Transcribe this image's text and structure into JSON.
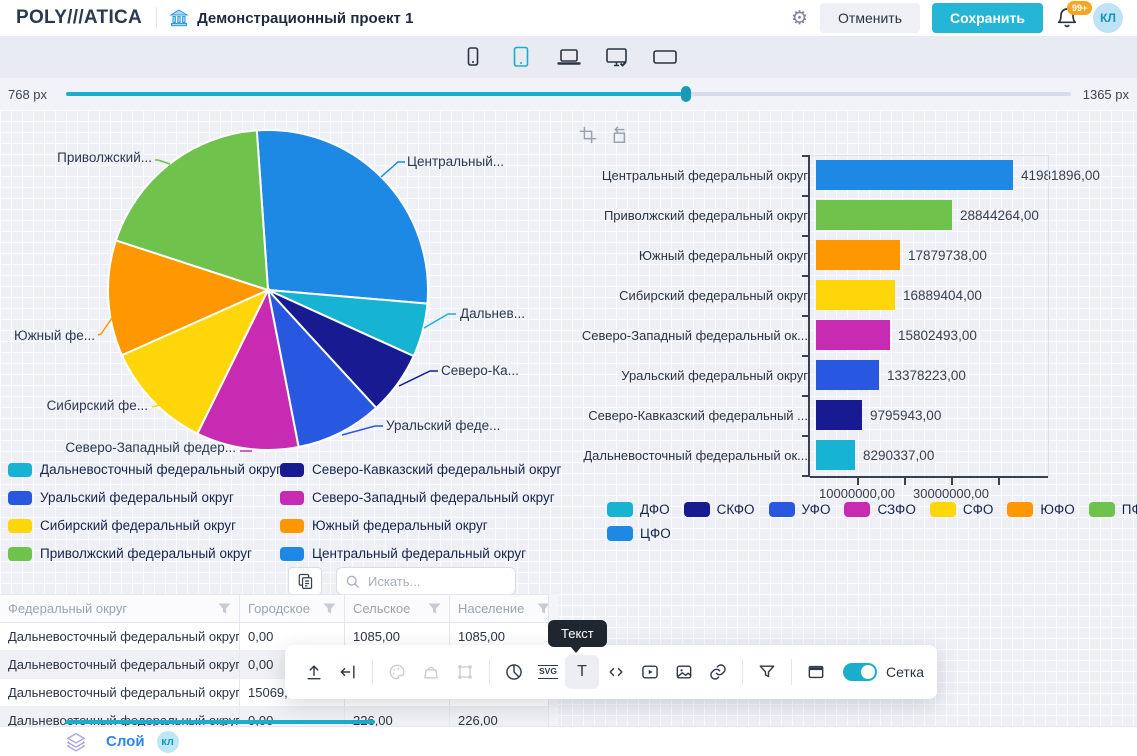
{
  "header": {
    "logo": "POLY///ATICA",
    "project_title": "Демонстрационный проект 1",
    "cancel_label": "Отменить",
    "save_label": "Сохранить",
    "notifications_badge": "99+",
    "avatar_initials": "КЛ"
  },
  "device_bar": {
    "devices": [
      "phone",
      "tablet",
      "laptop",
      "desktop-check",
      "widescreen"
    ],
    "selected": "tablet"
  },
  "width_slider": {
    "min_label": "768 px",
    "max_label": "1365 px",
    "fill_percent": 61.7
  },
  "chart_data": [
    {
      "type": "pie",
      "start_angle_deg": -4,
      "slices": [
        {
          "name": "Центральный федеральный округ",
          "short": "ЦФО",
          "callout": "Центральный...",
          "value": 41981896,
          "color": "#1E88E5"
        },
        {
          "name": "Дальневосточный федеральный округ",
          "short": "ДФО",
          "callout": "Дальнев...",
          "value": 8290337,
          "color": "#16B4D2"
        },
        {
          "name": "Северо-Кавказский федеральный округ",
          "short": "СКФО",
          "callout": "Северо-Ка...",
          "value": 9795943,
          "color": "#181A91"
        },
        {
          "name": "Уральский федеральный округ",
          "short": "УФО",
          "callout": "Уральский феде...",
          "value": 13378223,
          "color": "#2857E0"
        },
        {
          "name": "Северо-Западный федеральный округ",
          "short": "СЗФО",
          "callout": "Северо-Западный федер...",
          "value": 15802493,
          "color": "#C62BB2"
        },
        {
          "name": "Сибирский федеральный округ",
          "short": "СФО",
          "callout": "Сибирский фе...",
          "value": 16889404,
          "color": "#FFD60A"
        },
        {
          "name": "Южный федеральный округ",
          "short": "ЮФО",
          "callout": "Южный фе...",
          "value": 17879738,
          "color": "#FF9800"
        },
        {
          "name": "Приволжский федеральный округ",
          "short": "ПФО",
          "callout": "Приволжский...",
          "value": 28844264,
          "color": "#6FC24C"
        }
      ],
      "legend": [
        {
          "label": "Дальневосточный федеральный округ",
          "color": "#16B4D2"
        },
        {
          "label": "Северо-Кавказский федеральный округ",
          "color": "#181A91"
        },
        {
          "label": "Уральский федеральный округ",
          "color": "#2857E0"
        },
        {
          "label": "Северо-Западный федеральный округ",
          "color": "#C62BB2"
        },
        {
          "label": "Сибирский федеральный округ",
          "color": "#FFD60A"
        },
        {
          "label": "Южный федеральный округ",
          "color": "#FF9800"
        },
        {
          "label": "Приволжский федеральный округ",
          "color": "#6FC24C"
        },
        {
          "label": "Центральный федеральный округ",
          "color": "#1E88E5"
        }
      ]
    },
    {
      "type": "bar",
      "orientation": "horizontal",
      "categories": [
        "Центральный федеральный округ",
        "Приволжский федеральный округ",
        "Южный федеральный округ",
        "Сибирский федеральный округ",
        "Северо-Западный федеральный ок...",
        "Уральский федеральный округ",
        "Северо-Кавказский федеральный ...",
        "Дальневосточный федеральный ок..."
      ],
      "values": [
        41981896,
        28844264,
        17879738,
        16889404,
        15802493,
        13378223,
        9795943,
        8290337
      ],
      "value_labels": [
        "41981896,00",
        "28844264,00",
        "17879738,00",
        "16889404,00",
        "15802493,00",
        "13378223,00",
        "9795943,00",
        "8290337,00"
      ],
      "colors": [
        "#1E88E5",
        "#6FC24C",
        "#FF9800",
        "#FFD60A",
        "#C62BB2",
        "#2857E0",
        "#181A91",
        "#16B4D2"
      ],
      "xlim": [
        0,
        50000000
      ],
      "x_ticks": [
        {
          "value": 10000000,
          "label": "10000000,00"
        },
        {
          "value": 20000000,
          "label": ""
        },
        {
          "value": 30000000,
          "label": "30000000,00"
        },
        {
          "value": 40000000,
          "label": ""
        }
      ],
      "legend": [
        {
          "label": "ДФО",
          "color": "#16B4D2"
        },
        {
          "label": "СКФО",
          "color": "#181A91"
        },
        {
          "label": "УФО",
          "color": "#2857E0"
        },
        {
          "label": "СЗФО",
          "color": "#C62BB2"
        },
        {
          "label": "СФО",
          "color": "#FFD60A"
        },
        {
          "label": "ЮФО",
          "color": "#FF9800"
        },
        {
          "label": "ПФО",
          "color": "#6FC24C"
        },
        {
          "label": "ЦФО",
          "color": "#1E88E5"
        }
      ],
      "legend_first_row_count": 7
    }
  ],
  "table": {
    "search_placeholder": "Искать...",
    "columns": [
      "Федеральный округ",
      "Городское",
      "Сельское",
      "Население"
    ],
    "rows": [
      [
        "Дальневосточный федеральный округ",
        "0,00",
        "1085,00",
        "1085,00"
      ],
      [
        "Дальневосточный федеральный округ",
        "0,00",
        "",
        ""
      ],
      [
        "Дальневосточный федеральный округ",
        "15069,",
        "",
        ""
      ],
      [
        "Дальневосточный федеральный округ",
        "0,00",
        "226,00",
        "226,00"
      ]
    ]
  },
  "toolbar": {
    "tooltip": "Текст",
    "grid_toggle_label": "Сетка",
    "grid_toggle_on": true
  },
  "footer": {
    "layer_label": "Слой",
    "badge": "кл"
  },
  "icons": {
    "gear": "⚙",
    "bell": "bell-outline",
    "bank": "building-columns",
    "search": "magnifier",
    "filter": "funnel",
    "copy": "copy-sheets",
    "upload": "arrow-up-from-line",
    "collapse-left": "arrow-to-bar-left",
    "palette": "palette",
    "bag": "bag",
    "transform": "bounding-box",
    "pie": "pie-chart",
    "svg": "SVG",
    "text": "T",
    "code": "angle-brackets",
    "video": "play-rect",
    "image": "picture",
    "link": "chain",
    "panel": "window-topbar",
    "crop": "crop",
    "undo": "undo-frame",
    "layers": "layers"
  },
  "colors": {
    "accent": "#19AECC",
    "save_button": "#25B6D6",
    "badge": "#F5A623",
    "canvas_bg": "#EEF0F6"
  }
}
